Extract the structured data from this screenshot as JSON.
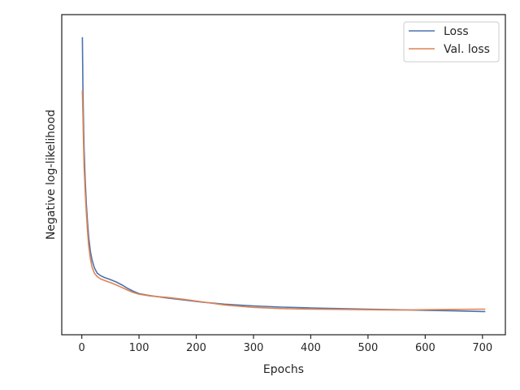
{
  "chart_data": {
    "type": "line",
    "title": "",
    "xlabel": "Epochs",
    "ylabel": "Negative log-likelihood",
    "x_ticks": [
      0,
      100,
      200,
      300,
      400,
      500,
      600,
      700
    ],
    "x_tick_labels": [
      "0",
      "100",
      "200",
      "300",
      "400",
      "500",
      "600",
      "700"
    ],
    "xlim": [
      -35,
      740
    ],
    "ylim": [
      0.0,
      1.0
    ],
    "y_tick_labels_shown": false,
    "grid": false,
    "legend_position": "top-right",
    "series": [
      {
        "name": "Loss",
        "color": "#4c72b0",
        "x": [
          1,
          2,
          3,
          4,
          6,
          8,
          10,
          12,
          15,
          18,
          22,
          27,
          33,
          40,
          50,
          60,
          70,
          80,
          90,
          100,
          120,
          150,
          180,
          210,
          250,
          300,
          350,
          400,
          450,
          500,
          550,
          600,
          650,
          700,
          705
        ],
        "y": [
          0.962,
          0.78,
          0.67,
          0.58,
          0.47,
          0.39,
          0.33,
          0.28,
          0.23,
          0.2,
          0.173,
          0.155,
          0.146,
          0.14,
          0.133,
          0.125,
          0.115,
          0.103,
          0.093,
          0.085,
          0.078,
          0.07,
          0.063,
          0.056,
          0.049,
          0.043,
          0.039,
          0.036,
          0.034,
          0.032,
          0.03,
          0.028,
          0.026,
          0.024,
          0.024
        ]
      },
      {
        "name": "Val. loss",
        "color": "#dd8452",
        "x": [
          1,
          2,
          3,
          4,
          6,
          8,
          10,
          12,
          15,
          18,
          22,
          27,
          33,
          40,
          50,
          60,
          70,
          80,
          90,
          100,
          120,
          150,
          180,
          210,
          250,
          300,
          350,
          400,
          450,
          500,
          550,
          600,
          650,
          700,
          705
        ],
        "y": [
          0.78,
          0.69,
          0.6,
          0.52,
          0.43,
          0.36,
          0.3,
          0.25,
          0.205,
          0.175,
          0.155,
          0.143,
          0.135,
          0.13,
          0.123,
          0.115,
          0.106,
          0.097,
          0.089,
          0.083,
          0.077,
          0.072,
          0.065,
          0.057,
          0.046,
          0.038,
          0.034,
          0.032,
          0.031,
          0.03,
          0.029,
          0.03,
          0.031,
          0.032,
          0.032
        ]
      }
    ]
  }
}
